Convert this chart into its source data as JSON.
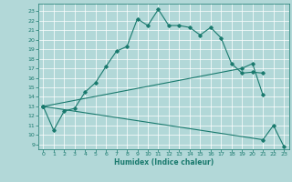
{
  "title": "",
  "xlabel": "Humidex (Indice chaleur)",
  "bg_color": "#b2d8d8",
  "line_color": "#1a7a6e",
  "grid_color": "#ffffff",
  "xlim": [
    -0.5,
    23.5
  ],
  "ylim": [
    8.5,
    23.8
  ],
  "yticks": [
    9,
    10,
    11,
    12,
    13,
    14,
    15,
    16,
    17,
    18,
    19,
    20,
    21,
    22,
    23
  ],
  "xticks": [
    0,
    1,
    2,
    3,
    4,
    5,
    6,
    7,
    8,
    9,
    10,
    11,
    12,
    13,
    14,
    15,
    16,
    17,
    18,
    19,
    20,
    21,
    22,
    23
  ],
  "curve1_x": [
    0,
    1,
    2,
    3,
    4,
    5,
    6,
    7,
    8,
    9,
    10,
    11,
    12,
    13,
    14,
    15,
    16,
    17,
    18,
    19,
    20,
    21
  ],
  "curve1_y": [
    13,
    10.5,
    12.5,
    12.8,
    14.5,
    15.5,
    17.2,
    18.8,
    19.3,
    22.2,
    21.5,
    23.2,
    21.5,
    21.5,
    21.3,
    20.5,
    21.3,
    20.2,
    17.5,
    16.5,
    16.6,
    16.5
  ],
  "curve2_x": [
    0,
    19,
    20,
    21
  ],
  "curve2_y": [
    13,
    17.0,
    17.5,
    14.2
  ],
  "curve3_x": [
    0,
    21,
    22,
    23
  ],
  "curve3_y": [
    13,
    9.5,
    11.0,
    8.8
  ],
  "figsize": [
    3.2,
    2.0
  ],
  "dpi": 100
}
